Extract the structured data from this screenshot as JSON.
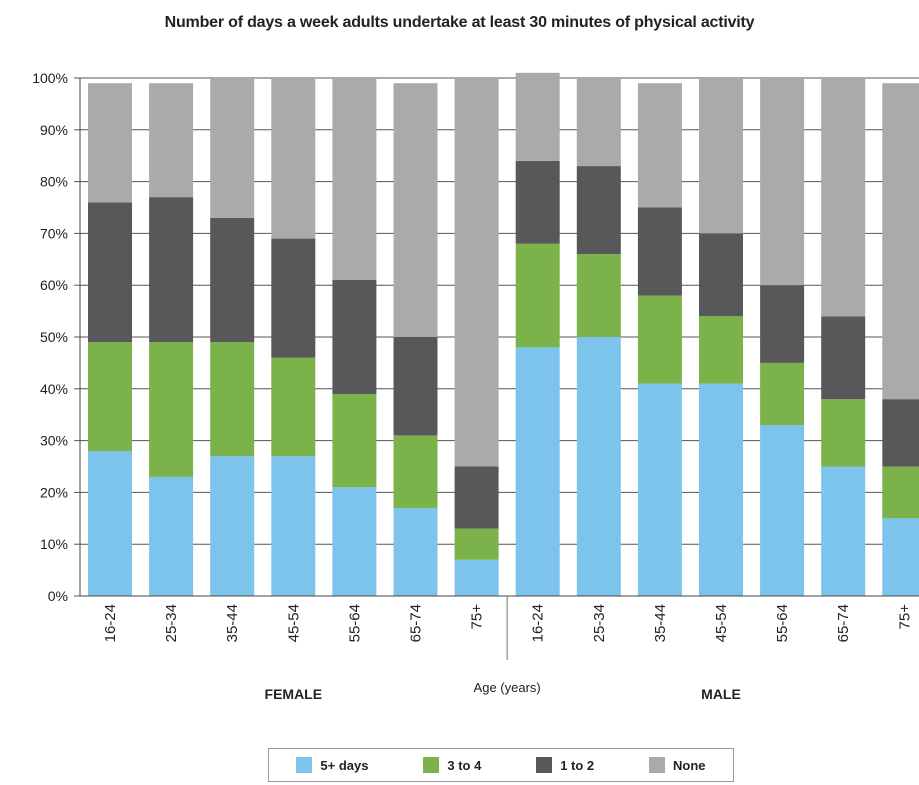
{
  "chart_data": {
    "type": "bar",
    "stacked": true,
    "title": "Number of days a week adults undertake at least 30 minutes of physical activity",
    "xlabel": "Age (years)",
    "ylabel": "",
    "ylim": [
      0,
      100
    ],
    "y_ticks": [
      "0%",
      "10%",
      "20%",
      "30%",
      "40%",
      "50%",
      "60%",
      "70%",
      "80%",
      "90%",
      "100%"
    ],
    "groups": [
      {
        "label": "FEMALE",
        "categories": [
          "16-24",
          "25-34",
          "35-44",
          "45-54",
          "55-64",
          "65-74",
          "75+"
        ]
      },
      {
        "label": "MALE",
        "categories": [
          "16-24",
          "25-34",
          "35-44",
          "45-54",
          "55-64",
          "65-74",
          "75+"
        ]
      }
    ],
    "categories": [
      "16-24",
      "25-34",
      "35-44",
      "45-54",
      "55-64",
      "65-74",
      "75+",
      "16-24",
      "25-34",
      "35-44",
      "45-54",
      "55-64",
      "65-74",
      "75+"
    ],
    "series": [
      {
        "name": "5+ days",
        "color": "#7cc4ec",
        "values": [
          28,
          23,
          27,
          27,
          21,
          17,
          7,
          48,
          50,
          41,
          41,
          33,
          25,
          15
        ]
      },
      {
        "name": "3 to 4",
        "color": "#7cb24a",
        "values": [
          21,
          26,
          22,
          19,
          18,
          14,
          6,
          20,
          16,
          17,
          13,
          12,
          13,
          10
        ]
      },
      {
        "name": "1 to 2",
        "color": "#58585a",
        "values": [
          27,
          28,
          24,
          23,
          22,
          19,
          12,
          16,
          17,
          17,
          16,
          15,
          16,
          13
        ]
      },
      {
        "name": "None",
        "color": "#a9aaac",
        "values": [
          23,
          22,
          27,
          31,
          39,
          49,
          75,
          17,
          17,
          24,
          30,
          40,
          46,
          61
        ]
      }
    ],
    "grid": true,
    "legend_position": "bottom"
  }
}
